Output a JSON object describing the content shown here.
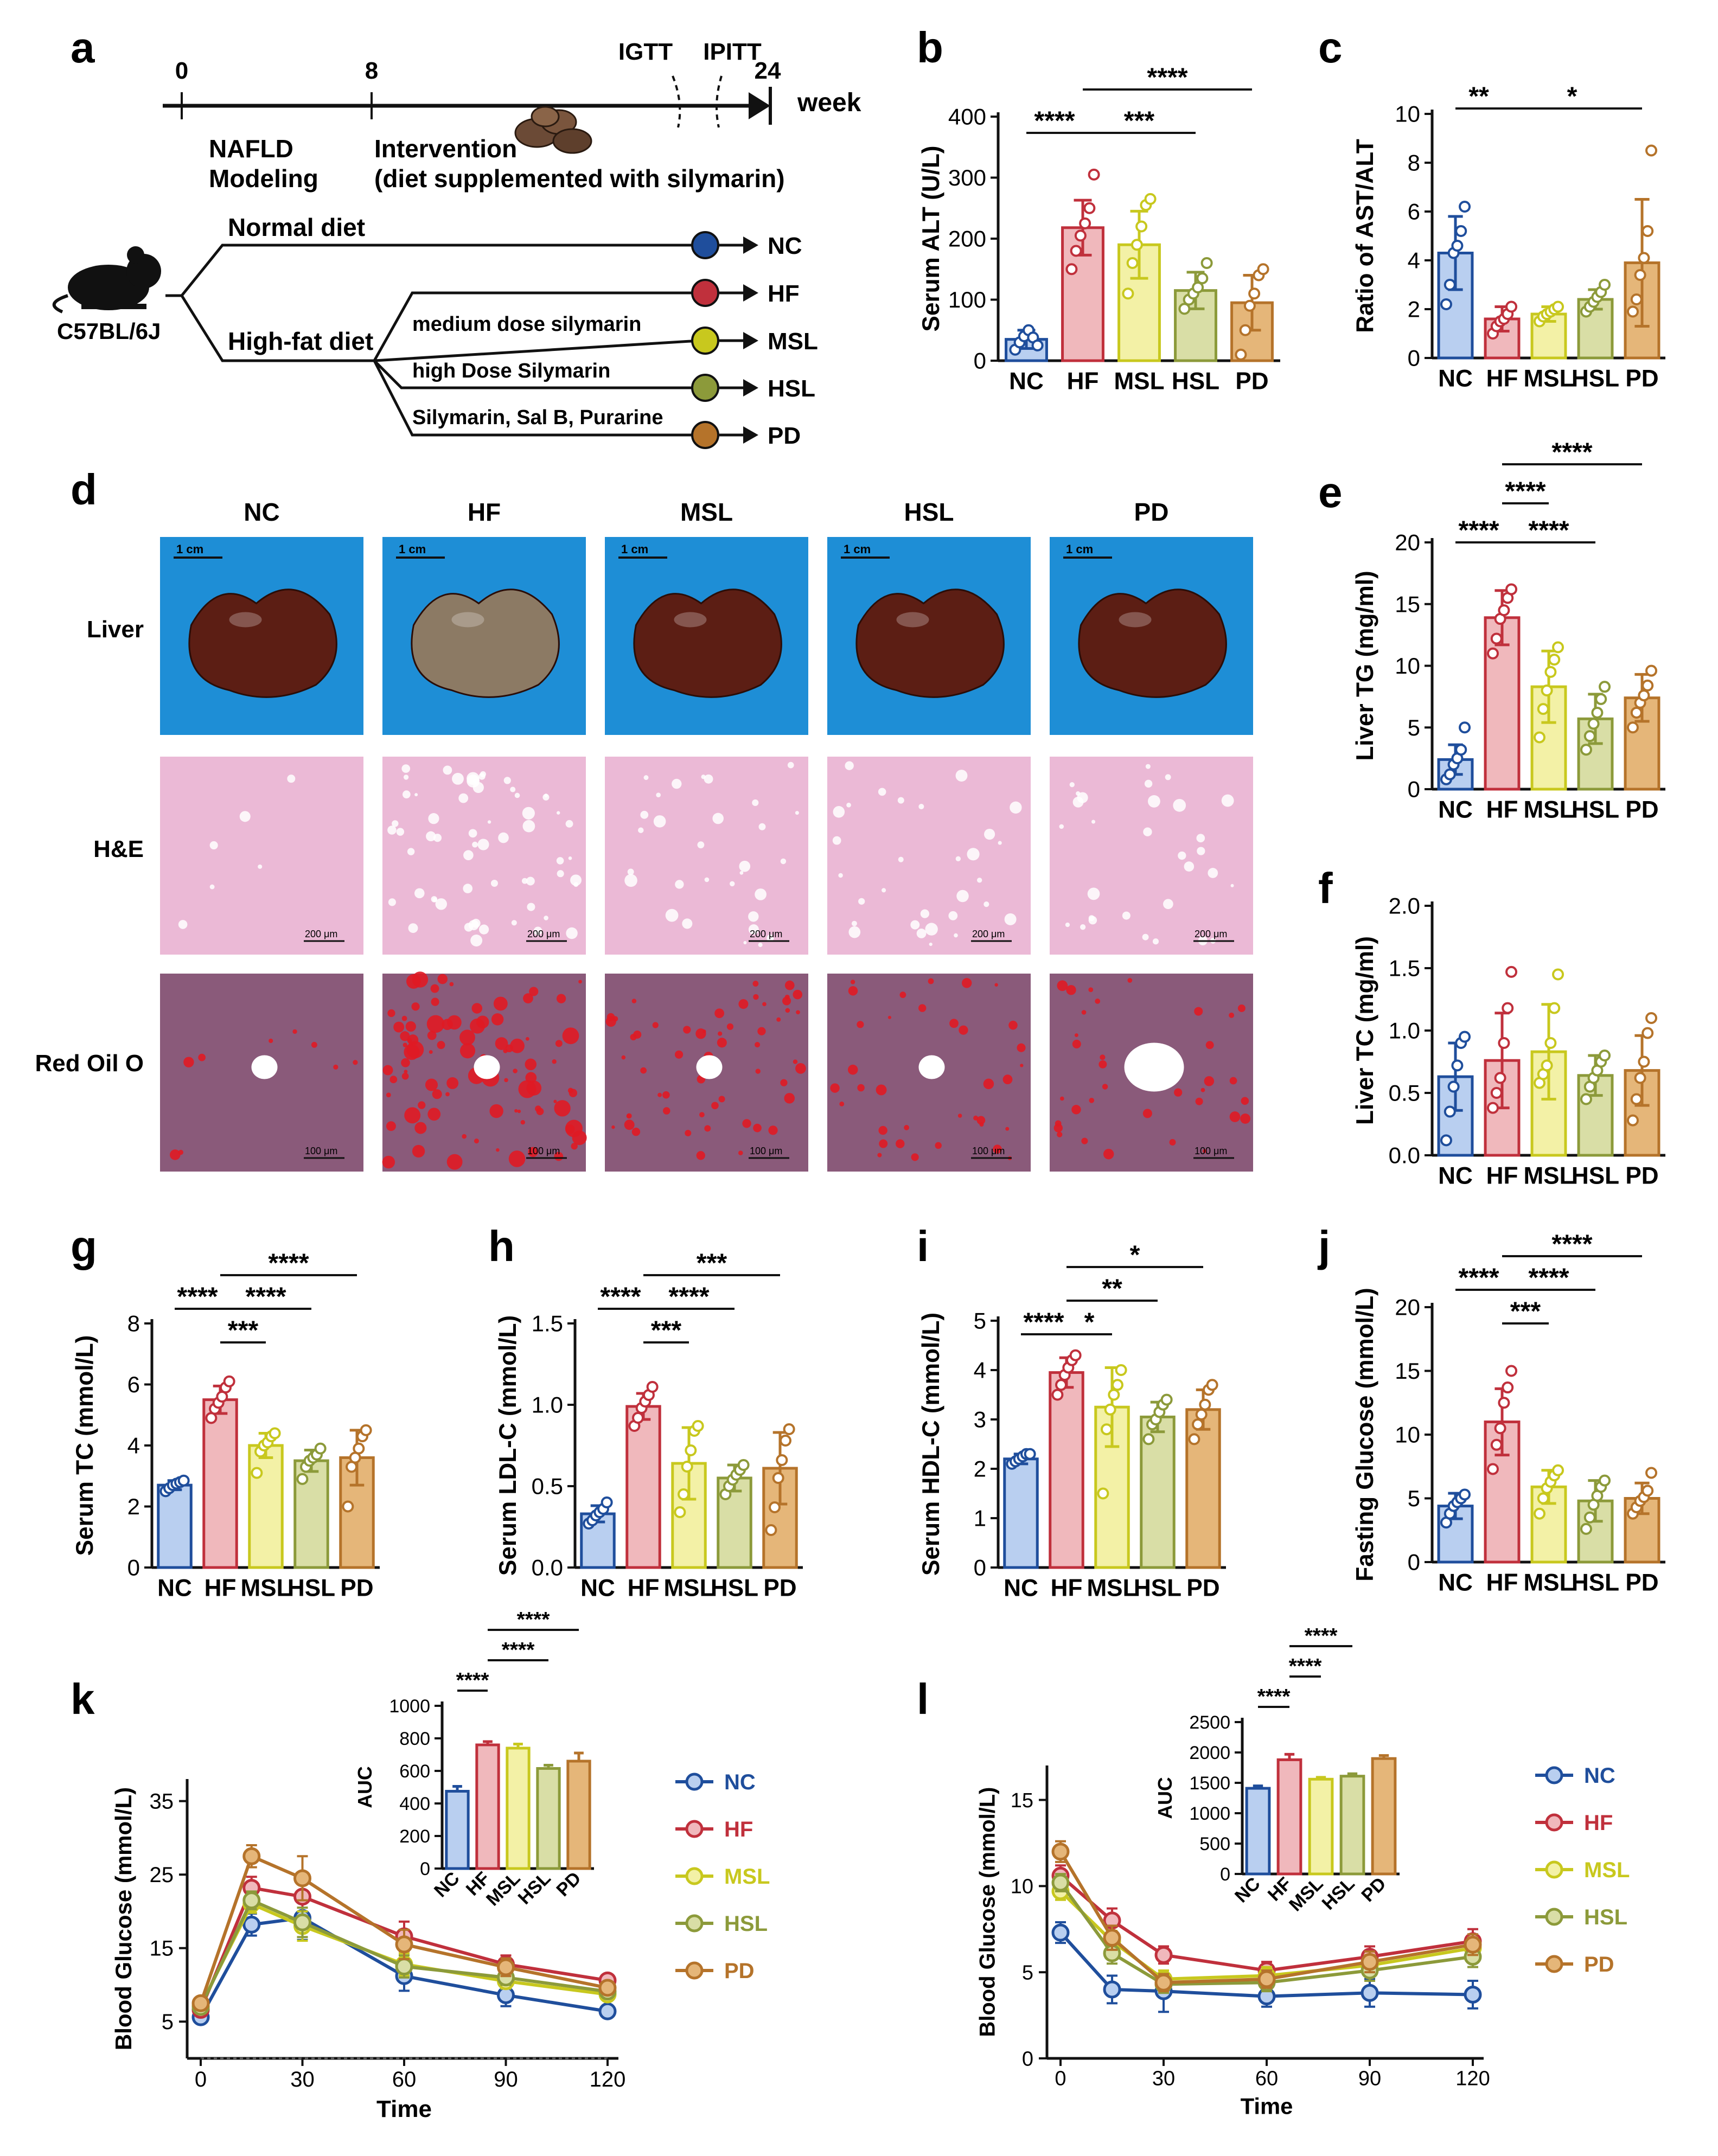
{
  "colors": {
    "NC": "#1f4e9c",
    "HF": "#c0303c",
    "MSL": "#c8c81e",
    "HSL": "#8c9a3a",
    "PD": "#b5732a",
    "fill_NC": "#b9cff0",
    "fill_HF": "#f0b8bc",
    "fill_MSL": "#f3f1a6",
    "fill_HSL": "#d9dea6",
    "fill_PD": "#e5b679",
    "photo_bg": "#1e8ed6",
    "he_bg": "#ebb9d6",
    "oil_bg": "#8a5a7a"
  },
  "panel_letters": {
    "a": "a",
    "b": "b",
    "c": "c",
    "d": "d",
    "e": "e",
    "f": "f",
    "g": "g",
    "h": "h",
    "i": "i",
    "j": "j",
    "k": "k",
    "l": "l"
  },
  "panel_a": {
    "timeline": {
      "t0": "0",
      "t8": "8",
      "t24": "24",
      "unit": "week",
      "igtt": "IGTT",
      "ipitt": "IPITT",
      "modeling_line1": "NAFLD",
      "modeling_line2": "Modeling",
      "intervention_line1": "Intervention",
      "intervention_line2": "(diet supplemented with silymarin)"
    },
    "mouse_strain": "C57BL/6J",
    "branch_normal": "Normal diet",
    "branch_highfat": "High-fat diet",
    "sub_msl": "medium dose silymarin",
    "sub_hsl": "high Dose Silymarin",
    "sub_pd": "Silymarin, Sal B, Purarine",
    "groups": [
      "NC",
      "HF",
      "MSL",
      "HSL",
      "PD"
    ]
  },
  "panel_d": {
    "columns": [
      "NC",
      "HF",
      "MSL",
      "HSL",
      "PD"
    ],
    "rows": [
      "Liver",
      "H&E",
      "Red Oil O"
    ],
    "scale_liver": "1 cm",
    "scale_he": "200 μm",
    "scale_oil": "100 μm"
  },
  "chart_data": [
    {
      "id": "b",
      "type": "bar",
      "title": "",
      "ylabel": "Serum ALT (U/L)",
      "ylim": [
        0,
        400
      ],
      "yticks": [
        "0",
        "100",
        "200",
        "300",
        "400"
      ],
      "categories": [
        "NC",
        "HF",
        "MSL",
        "HSL",
        "PD"
      ],
      "values": [
        35,
        218,
        190,
        115,
        95
      ],
      "errors": [
        15,
        45,
        55,
        30,
        45
      ],
      "points": [
        [
          18,
          30,
          40,
          50,
          38,
          25
        ],
        [
          150,
          180,
          205,
          225,
          250,
          305
        ],
        [
          110,
          160,
          190,
          220,
          255,
          265
        ],
        [
          85,
          100,
          110,
          120,
          135,
          160
        ],
        [
          10,
          50,
          90,
          110,
          140,
          150
        ]
      ],
      "significance": [
        {
          "from": 0,
          "to": 1,
          "label": "****",
          "level": 0
        },
        {
          "from": 1,
          "to": 3,
          "label": "***",
          "level": 0
        },
        {
          "from": 1,
          "to": 4,
          "label": "****",
          "level": 1
        }
      ]
    },
    {
      "id": "c",
      "type": "bar",
      "title": "",
      "ylabel": "Ratio of AST/ALT",
      "ylim": [
        0,
        10
      ],
      "yticks": [
        "0",
        "2",
        "4",
        "6",
        "8",
        "10"
      ],
      "categories": [
        "NC",
        "HF",
        "MSL",
        "HSL",
        "PD"
      ],
      "values": [
        4.3,
        1.6,
        1.8,
        2.4,
        3.9
      ],
      "errors": [
        1.5,
        0.5,
        0.3,
        0.4,
        2.6
      ],
      "points": [
        [
          2.2,
          3.0,
          4.3,
          4.6,
          5.2,
          6.2
        ],
        [
          1.0,
          1.3,
          1.5,
          1.6,
          1.8,
          2.1
        ],
        [
          1.5,
          1.7,
          1.8,
          1.9,
          2.0,
          2.1
        ],
        [
          1.9,
          2.1,
          2.3,
          2.5,
          2.7,
          3.0
        ],
        [
          1.9,
          2.4,
          3.4,
          4.1,
          5.2,
          8.5
        ]
      ],
      "significance": [
        {
          "from": 0,
          "to": 1,
          "label": "**",
          "level": 0
        },
        {
          "from": 1,
          "to": 4,
          "label": "*",
          "level": 0
        }
      ]
    },
    {
      "id": "e",
      "type": "bar",
      "title": "",
      "ylabel": "Liver TG (mg/ml)",
      "ylim": [
        0,
        20
      ],
      "yticks": [
        "0",
        "5",
        "10",
        "15",
        "20"
      ],
      "categories": [
        "NC",
        "HF",
        "MSL",
        "HSL",
        "PD"
      ],
      "values": [
        2.4,
        13.9,
        8.3,
        5.7,
        7.4
      ],
      "errors": [
        1.2,
        2.2,
        2.9,
        2.0,
        1.9
      ],
      "points": [
        [
          0.8,
          1.2,
          2.0,
          2.5,
          3.2,
          5.0
        ],
        [
          11.0,
          12.2,
          13.8,
          14.5,
          15.5,
          16.2
        ],
        [
          4.2,
          6.5,
          8.0,
          9.5,
          10.5,
          11.5
        ],
        [
          3.2,
          4.3,
          5.3,
          6.2,
          7.3,
          8.3
        ],
        [
          5.0,
          6.2,
          7.0,
          7.6,
          8.4,
          9.6
        ]
      ],
      "significance": [
        {
          "from": 0,
          "to": 1,
          "label": "****",
          "level": 0
        },
        {
          "from": 1,
          "to": 3,
          "label": "****",
          "level": 0
        },
        {
          "from": 1,
          "to": 2,
          "label": "****",
          "level": 1
        },
        {
          "from": 1,
          "to": 4,
          "label": "****",
          "level": 2
        }
      ]
    },
    {
      "id": "f",
      "type": "bar",
      "title": "",
      "ylabel": "Liver TC (mg/ml)",
      "ylim": [
        0,
        2.0
      ],
      "yticks": [
        "0.0",
        "0.5",
        "1.0",
        "1.5",
        "2.0"
      ],
      "categories": [
        "NC",
        "HF",
        "MSL",
        "HSL",
        "PD"
      ],
      "values": [
        0.63,
        0.76,
        0.83,
        0.64,
        0.68
      ],
      "errors": [
        0.27,
        0.38,
        0.38,
        0.16,
        0.28
      ],
      "points": [
        [
          0.12,
          0.35,
          0.55,
          0.72,
          0.9,
          0.95
        ],
        [
          0.38,
          0.5,
          0.62,
          0.9,
          1.18,
          1.47
        ],
        [
          0.58,
          0.65,
          0.72,
          0.9,
          1.18,
          1.45
        ],
        [
          0.45,
          0.55,
          0.62,
          0.68,
          0.75,
          0.8
        ],
        [
          0.28,
          0.45,
          0.62,
          0.75,
          0.98,
          1.1
        ]
      ],
      "significance": []
    },
    {
      "id": "g",
      "type": "bar",
      "title": "",
      "ylabel": "Serum TC (mmol/L)",
      "ylim": [
        0,
        8
      ],
      "yticks": [
        "0",
        "2",
        "4",
        "6",
        "8"
      ],
      "categories": [
        "NC",
        "HF",
        "MSL",
        "HSL",
        "PD"
      ],
      "values": [
        2.7,
        5.5,
        4.0,
        3.5,
        3.6
      ],
      "errors": [
        0.15,
        0.45,
        0.4,
        0.35,
        0.9
      ],
      "points": [
        [
          2.5,
          2.6,
          2.7,
          2.75,
          2.8,
          2.85
        ],
        [
          4.9,
          5.2,
          5.4,
          5.6,
          5.9,
          6.1
        ],
        [
          3.1,
          3.8,
          4.0,
          4.1,
          4.3,
          4.4
        ],
        [
          2.9,
          3.3,
          3.5,
          3.6,
          3.7,
          3.9
        ],
        [
          2.0,
          3.3,
          3.6,
          3.9,
          4.3,
          4.5
        ]
      ],
      "significance": [
        {
          "from": 0,
          "to": 1,
          "label": "****",
          "level": 1
        },
        {
          "from": 1,
          "to": 2,
          "label": "***",
          "level": 0
        },
        {
          "from": 1,
          "to": 3,
          "label": "****",
          "level": 1
        },
        {
          "from": 1,
          "to": 4,
          "label": "****",
          "level": 2
        }
      ]
    },
    {
      "id": "h",
      "type": "bar",
      "title": "",
      "ylabel": "Serum LDL-C (mmol/L)",
      "ylim": [
        0,
        1.5
      ],
      "yticks": [
        "0.0",
        "0.5",
        "1.0",
        "1.5"
      ],
      "categories": [
        "NC",
        "HF",
        "MSL",
        "HSL",
        "PD"
      ],
      "values": [
        0.33,
        0.99,
        0.64,
        0.55,
        0.61
      ],
      "errors": [
        0.05,
        0.08,
        0.22,
        0.08,
        0.22
      ],
      "points": [
        [
          0.27,
          0.29,
          0.32,
          0.34,
          0.36,
          0.4
        ],
        [
          0.87,
          0.92,
          0.98,
          1.02,
          1.06,
          1.11
        ],
        [
          0.34,
          0.45,
          0.62,
          0.72,
          0.84,
          0.87
        ],
        [
          0.45,
          0.5,
          0.54,
          0.57,
          0.6,
          0.63
        ],
        [
          0.23,
          0.37,
          0.55,
          0.66,
          0.78,
          0.85
        ]
      ],
      "significance": [
        {
          "from": 0,
          "to": 1,
          "label": "****",
          "level": 1
        },
        {
          "from": 1,
          "to": 2,
          "label": "***",
          "level": 0
        },
        {
          "from": 1,
          "to": 3,
          "label": "****",
          "level": 1
        },
        {
          "from": 1,
          "to": 4,
          "label": "***",
          "level": 2
        }
      ]
    },
    {
      "id": "i",
      "type": "bar",
      "title": "",
      "ylabel": "Serum HDL-C (mmol/L)",
      "ylim": [
        0,
        5
      ],
      "yticks": [
        "0",
        "1",
        "2",
        "3",
        "4",
        "5"
      ],
      "categories": [
        "NC",
        "HF",
        "MSL",
        "HSL",
        "PD"
      ],
      "values": [
        2.2,
        3.95,
        3.25,
        3.05,
        3.2
      ],
      "errors": [
        0.1,
        0.3,
        0.8,
        0.3,
        0.4
      ],
      "points": [
        [
          2.1,
          2.15,
          2.2,
          2.25,
          2.3,
          2.3
        ],
        [
          3.5,
          3.7,
          3.9,
          4.05,
          4.2,
          4.3
        ],
        [
          1.5,
          2.8,
          3.2,
          3.5,
          3.7,
          4.0
        ],
        [
          2.6,
          2.9,
          3.0,
          3.15,
          3.3,
          3.4
        ],
        [
          2.6,
          2.9,
          3.1,
          3.3,
          3.6,
          3.7
        ]
      ],
      "significance": [
        {
          "from": 0,
          "to": 1,
          "label": "****",
          "level": 0
        },
        {
          "from": 1,
          "to": 2,
          "label": "*",
          "level": 0
        },
        {
          "from": 1,
          "to": 3,
          "label": "**",
          "level": 1
        },
        {
          "from": 1,
          "to": 4,
          "label": "*",
          "level": 2
        }
      ]
    },
    {
      "id": "j",
      "type": "bar",
      "title": "",
      "ylabel": "Fasting Glucose (mmol/L)",
      "ylim": [
        0,
        20
      ],
      "yticks": [
        "0",
        "5",
        "10",
        "15",
        "20"
      ],
      "categories": [
        "NC",
        "HF",
        "MSL",
        "HSL",
        "PD"
      ],
      "values": [
        4.4,
        11.0,
        5.9,
        4.8,
        5.0
      ],
      "errors": [
        1.0,
        2.6,
        1.3,
        1.6,
        1.2
      ],
      "points": [
        [
          3.1,
          3.8,
          4.4,
          4.7,
          5.0,
          5.3
        ],
        [
          7.3,
          9.2,
          10.5,
          12.5,
          13.7,
          15.0
        ],
        [
          3.8,
          5.0,
          5.8,
          6.3,
          6.8,
          7.2
        ],
        [
          2.6,
          3.5,
          4.5,
          5.2,
          5.9,
          6.4
        ],
        [
          3.8,
          4.3,
          4.8,
          5.1,
          5.6,
          7.0
        ]
      ],
      "significance": [
        {
          "from": 0,
          "to": 1,
          "label": "****",
          "level": 1
        },
        {
          "from": 1,
          "to": 2,
          "label": "***",
          "level": 0
        },
        {
          "from": 1,
          "to": 3,
          "label": "****",
          "level": 1
        },
        {
          "from": 1,
          "to": 4,
          "label": "****",
          "level": 2
        }
      ]
    },
    {
      "id": "k",
      "type": "line",
      "title": "",
      "xlabel": "Time",
      "ylabel": "Blood Glucose (mmol/L)",
      "x": [
        0,
        15,
        30,
        60,
        90,
        120
      ],
      "xticks": [
        "0",
        "30",
        "60",
        "90",
        "120"
      ],
      "xlim": [
        0,
        120
      ],
      "ylim": [
        0,
        38
      ],
      "yticks": [
        "5",
        "15",
        "25",
        "35"
      ],
      "series": [
        {
          "name": "NC",
          "values": [
            5.6,
            18.2,
            19.1,
            11.2,
            8.6,
            6.4
          ],
          "errors": [
            0.3,
            1.5,
            3.0,
            2.0,
            1.5,
            0.4
          ]
        },
        {
          "name": "HF",
          "values": [
            6.6,
            23.2,
            22.0,
            16.6,
            12.8,
            10.6
          ],
          "errors": [
            0.4,
            1.5,
            2.0,
            2.0,
            1.2,
            0.8
          ]
        },
        {
          "name": "MSL",
          "values": [
            7.2,
            21.0,
            18.0,
            12.8,
            10.5,
            8.7
          ],
          "errors": [
            0.4,
            1.2,
            2.0,
            1.5,
            1.0,
            0.6
          ]
        },
        {
          "name": "HSL",
          "values": [
            7.0,
            21.5,
            18.5,
            12.5,
            11.0,
            9.1
          ],
          "errors": [
            0.4,
            1.2,
            2.0,
            1.5,
            1.0,
            0.6
          ]
        },
        {
          "name": "PD",
          "values": [
            7.5,
            27.5,
            24.5,
            15.5,
            12.4,
            9.6
          ],
          "errors": [
            0.4,
            1.5,
            3.0,
            2.0,
            1.2,
            0.8
          ]
        }
      ],
      "inset": {
        "ylabel": "AUC",
        "ylim": [
          0,
          1000
        ],
        "yticks": [
          "0",
          "200",
          "400",
          "600",
          "800",
          "1000"
        ],
        "categories": [
          "NC",
          "HF",
          "MSL",
          "HSL",
          "PD"
        ],
        "values": [
          475,
          760,
          740,
          615,
          660
        ],
        "errors": [
          30,
          20,
          25,
          20,
          50
        ],
        "significance": [
          {
            "from": 0,
            "to": 1,
            "label": "****",
            "level": 0
          },
          {
            "from": 1,
            "to": 3,
            "label": "****",
            "level": 1
          },
          {
            "from": 1,
            "to": 4,
            "label": "****",
            "level": 2
          }
        ]
      },
      "legend": [
        "NC",
        "HF",
        "MSL",
        "HSL",
        "PD"
      ]
    },
    {
      "id": "l",
      "type": "line",
      "title": "",
      "xlabel": "Time",
      "ylabel": "Blood Glucose (mmol/L)",
      "x": [
        0,
        15,
        30,
        60,
        90,
        120
      ],
      "xticks": [
        "0",
        "30",
        "60",
        "90",
        "120"
      ],
      "xlim": [
        0,
        120
      ],
      "ylim": [
        0,
        17
      ],
      "yticks": [
        "0",
        "5",
        "10",
        "15"
      ],
      "series": [
        {
          "name": "NC",
          "values": [
            7.3,
            4.0,
            3.9,
            3.6,
            3.8,
            3.7
          ],
          "errors": [
            0.6,
            0.8,
            1.2,
            0.6,
            0.8,
            0.8
          ]
        },
        {
          "name": "HF",
          "values": [
            10.6,
            8.0,
            6.0,
            5.1,
            5.9,
            6.8
          ],
          "errors": [
            0.6,
            0.7,
            0.5,
            0.5,
            0.6,
            0.7
          ]
        },
        {
          "name": "MSL",
          "values": [
            9.7,
            6.8,
            4.6,
            4.8,
            5.4,
            6.4
          ],
          "errors": [
            0.5,
            0.6,
            0.5,
            0.5,
            0.6,
            0.6
          ]
        },
        {
          "name": "HSL",
          "values": [
            10.2,
            6.1,
            4.3,
            4.4,
            5.1,
            5.9
          ],
          "errors": [
            0.5,
            0.6,
            0.5,
            0.5,
            0.6,
            0.6
          ]
        },
        {
          "name": "PD",
          "values": [
            12.0,
            7.0,
            4.4,
            4.6,
            5.6,
            6.6
          ],
          "errors": [
            0.6,
            0.7,
            0.5,
            0.5,
            0.6,
            0.6
          ]
        }
      ],
      "inset": {
        "ylabel": "AUC",
        "ylim": [
          0,
          2500
        ],
        "yticks": [
          "0",
          "500",
          "1000",
          "1500",
          "2000",
          "2500"
        ],
        "categories": [
          "NC",
          "HF",
          "MSL",
          "HSL",
          "PD"
        ],
        "values": [
          1410,
          1880,
          1560,
          1610,
          1900
        ],
        "errors": [
          40,
          90,
          30,
          40,
          50
        ],
        "significance": [
          {
            "from": 0,
            "to": 1,
            "label": "****",
            "level": 0
          },
          {
            "from": 1,
            "to": 2,
            "label": "****",
            "level": 1
          },
          {
            "from": 1,
            "to": 3,
            "label": "****",
            "level": 2
          }
        ]
      },
      "legend": [
        "NC",
        "HF",
        "MSL",
        "HSL",
        "PD"
      ]
    }
  ]
}
